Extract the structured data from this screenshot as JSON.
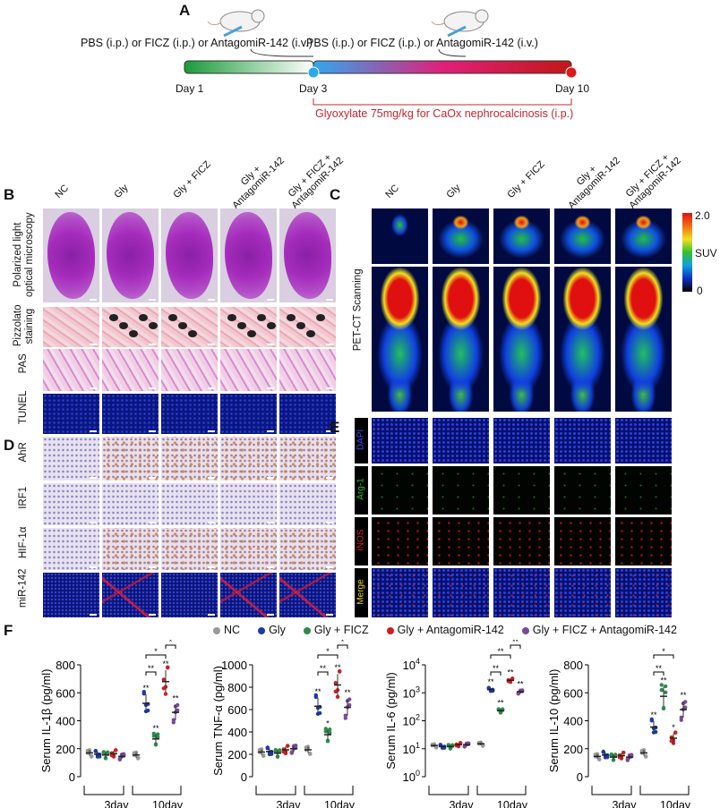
{
  "panel_labels": {
    "a": "A",
    "b": "B",
    "c": "C",
    "d": "D",
    "e": "E",
    "f": "F"
  },
  "timeline": {
    "treatment_1": "PBS (i.p.) or FICZ (i.p.) or AntagomiR-142 (i.v.)",
    "treatment_2": "PBS (i.p.) or FICZ (i.p.) or AntagomiR-142 (i.v.)",
    "days": [
      "Day 1",
      "Day 3",
      "Day 10"
    ],
    "glyoxylate": "Glyoxylate 75mg/kg for CaOx nephrocalcinosis (i.p.)",
    "glyoxylate_color": "#c0282d",
    "icons": [
      "mouse-injection-icon",
      "mouse-injection-icon"
    ]
  },
  "groups": [
    "NC",
    "Gly",
    "Gly + FICZ",
    "Gly + AntagomiR-142",
    "Gly + FICZ + AntagomiR-142"
  ],
  "group_headers_b": [
    "NC",
    "Gly",
    "Gly + FICZ",
    "Gly +\nAntagomiR-142",
    "Gly + FICZ +\nAntagomiR-142"
  ],
  "rows_b": [
    "Polarized light\noptical microscopy",
    "Pizzolato\nstaining",
    "PAS",
    "TUNEL"
  ],
  "rows_d": [
    "AhR",
    "IRF1",
    "HIF-1α",
    "miR-142"
  ],
  "panel_c": {
    "row_label": "PET-CT Scanning",
    "colorbar": {
      "max": "2.0",
      "label": "SUV",
      "min": "0"
    }
  },
  "rows_e": [
    {
      "label": "DAPI",
      "color": "#3b4fff"
    },
    {
      "label": "Arg-1",
      "color": "#2fbf2f"
    },
    {
      "label": "iNOS",
      "color": "#e02020"
    },
    {
      "label": "Merge",
      "color": "#e8d020"
    }
  ],
  "legend": [
    {
      "label": "NC",
      "color": "#999999"
    },
    {
      "label": "Gly",
      "color": "#1a3aa8"
    },
    {
      "label": "Gly + FICZ",
      "color": "#2e8a4a"
    },
    {
      "label": "Gly + AntagomiR-142",
      "color": "#cc2020"
    },
    {
      "label": "Gly + FICZ + AntagomiR-142",
      "color": "#7a4a9a"
    }
  ],
  "chart_data": [
    {
      "type": "scatter",
      "ylabel": "Serum IL-1β (pg/ml)",
      "scale": "linear",
      "ylim": [
        0,
        800
      ],
      "yticks": [
        "0",
        "200",
        "400",
        "600",
        "800"
      ],
      "categories": [
        "3day",
        "10day"
      ],
      "series": [
        {
          "name": "NC",
          "values": [
            170,
            155
          ]
        },
        {
          "name": "Gly",
          "values": [
            160,
            525
          ]
        },
        {
          "name": "Gly + FICZ",
          "values": [
            155,
            270
          ]
        },
        {
          "name": "Gly + AntagomiR-142",
          "values": [
            165,
            680
          ]
        },
        {
          "name": "Gly + FICZ + AntagomiR-142",
          "values": [
            145,
            460
          ]
        }
      ],
      "stars_10day": [
        "",
        "**",
        "**",
        "**",
        "**"
      ],
      "comparisons": [
        {
          "groups": [
            1,
            2
          ],
          "label": "**"
        },
        {
          "groups": [
            1,
            3
          ],
          "label": "*"
        },
        {
          "groups": [
            3,
            4
          ],
          "label": "*"
        }
      ]
    },
    {
      "type": "scatter",
      "ylabel": "Serum TNF-α (pg/ml)",
      "scale": "linear",
      "ylim": [
        0,
        1000
      ],
      "yticks": [
        "0",
        "200",
        "400",
        "600",
        "800",
        "1000"
      ],
      "categories": [
        "3day",
        "10day"
      ],
      "series": [
        {
          "name": "NC",
          "values": [
            220,
            240
          ]
        },
        {
          "name": "Gly",
          "values": [
            225,
            630
          ]
        },
        {
          "name": "Gly + FICZ",
          "values": [
            210,
            375
          ]
        },
        {
          "name": "Gly + AntagomiR-142",
          "values": [
            240,
            820
          ]
        },
        {
          "name": "Gly + FICZ + AntagomiR-142",
          "values": [
            250,
            620
          ]
        }
      ],
      "stars_10day": [
        "",
        "**",
        "*",
        "**",
        "**"
      ],
      "comparisons": [
        {
          "groups": [
            1,
            2
          ],
          "label": "**"
        },
        {
          "groups": [
            1,
            3
          ],
          "label": "*"
        },
        {
          "groups": [
            3,
            4
          ],
          "label": "*"
        }
      ]
    },
    {
      "type": "scatter",
      "ylabel": "Serum IL-6 (pg/ml)",
      "scale": "log",
      "ylim": [
        1,
        10000
      ],
      "yticks": [
        "10^0",
        "10^1",
        "10^2",
        "10^3",
        "10^4"
      ],
      "categories": [
        "3day",
        "10day"
      ],
      "series": [
        {
          "name": "NC",
          "values": [
            13,
            15
          ]
        },
        {
          "name": "Gly",
          "values": [
            12,
            1300
          ]
        },
        {
          "name": "Gly + FICZ",
          "values": [
            12,
            230
          ]
        },
        {
          "name": "Gly + AntagomiR-142",
          "values": [
            14,
            2800
          ]
        },
        {
          "name": "Gly + FICZ + AntagomiR-142",
          "values": [
            14,
            1100
          ]
        }
      ],
      "stars_10day": [
        "",
        "**",
        "**",
        "**",
        "**"
      ],
      "comparisons": [
        {
          "groups": [
            1,
            2
          ],
          "label": "**"
        },
        {
          "groups": [
            1,
            3
          ],
          "label": "**"
        },
        {
          "groups": [
            3,
            4
          ],
          "label": "**"
        }
      ]
    },
    {
      "type": "scatter",
      "ylabel": "Serum IL-10 (pg/ml)",
      "scale": "linear",
      "ylim": [
        0,
        800
      ],
      "yticks": [
        "0",
        "200",
        "400",
        "600",
        "800"
      ],
      "categories": [
        "3day",
        "10day"
      ],
      "series": [
        {
          "name": "NC",
          "values": [
            145,
            170
          ]
        },
        {
          "name": "Gly",
          "values": [
            155,
            355
          ]
        },
        {
          "name": "Gly + FICZ",
          "values": [
            140,
            575
          ]
        },
        {
          "name": "Gly + AntagomiR-142",
          "values": [
            150,
            275
          ]
        },
        {
          "name": "Gly + FICZ + AntagomiR-142",
          "values": [
            140,
            480
          ]
        }
      ],
      "stars_10day": [
        "",
        "**",
        "**",
        "*",
        "**"
      ],
      "comparisons": [
        {
          "groups": [
            1,
            2
          ],
          "label": "**"
        },
        {
          "groups": [
            1,
            3
          ],
          "label": "*"
        }
      ]
    }
  ]
}
